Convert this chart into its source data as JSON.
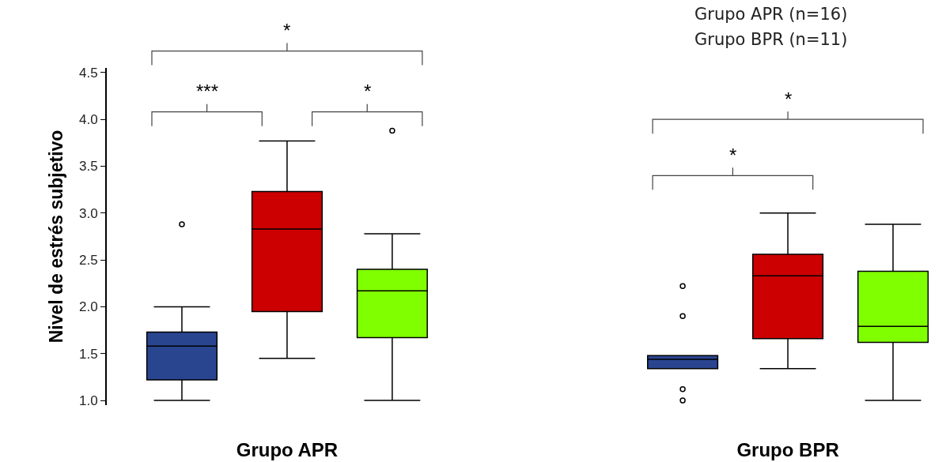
{
  "chart_data": {
    "type": "box",
    "ylabel": "Nivel de estrés subjetivo",
    "categories": [
      "Grupo APR",
      "Grupo BPR"
    ],
    "ylim": [
      0.95,
      4.55
    ],
    "yticks": [
      {
        "value": 1,
        "label": "1.0"
      },
      {
        "value": 1.5,
        "label": "1.5"
      },
      {
        "value": 2,
        "label": "2.0"
      },
      {
        "value": 2.5,
        "label": "2.5"
      },
      {
        "value": 3,
        "label": "3.0"
      },
      {
        "value": 3.5,
        "label": "3.5"
      },
      {
        "value": 4,
        "label": "4.0"
      },
      {
        "value": 4.5,
        "label": "4.5"
      }
    ],
    "grid": false,
    "series": [
      {
        "color": "#2a4590",
        "boxes": [
          {
            "low": 1.0,
            "q1": 1.22,
            "median": 1.58,
            "q3": 1.73,
            "high": 2.0,
            "outliers": [
              2.88
            ]
          },
          {
            "low": 1.34,
            "q1": 1.34,
            "median": 1.44,
            "q3": 1.48,
            "high": 1.48,
            "outliers": [
              1.0,
              1.12,
              1.9,
              2.22
            ]
          }
        ]
      },
      {
        "color": "#cc0000",
        "boxes": [
          {
            "low": 1.45,
            "q1": 1.95,
            "median": 2.83,
            "q3": 3.23,
            "high": 3.77
          },
          {
            "low": 1.34,
            "q1": 1.66,
            "median": 2.33,
            "q3": 2.56,
            "high": 3.0
          }
        ]
      },
      {
        "color": "#80ff00",
        "boxes": [
          {
            "low": 1.0,
            "q1": 1.67,
            "median": 2.17,
            "q3": 2.4,
            "high": 2.78,
            "outliers": [
              3.88
            ]
          },
          {
            "low": 1.0,
            "q1": 1.62,
            "median": 1.79,
            "q3": 2.38,
            "high": 2.88
          }
        ]
      }
    ],
    "annotations": [
      "***",
      "*",
      "*",
      "*",
      "*",
      "Grupo APR (n=16)",
      "Grupo BPR (n=11)"
    ]
  }
}
